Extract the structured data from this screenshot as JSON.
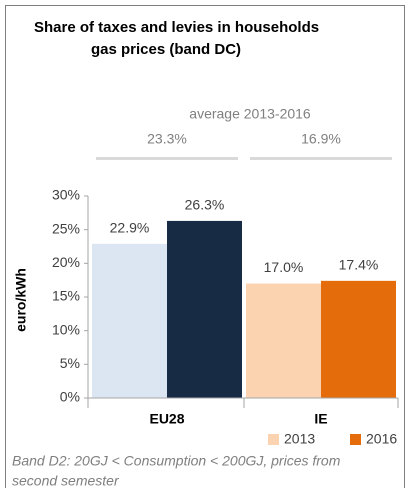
{
  "chart_data": {
    "type": "bar",
    "title": [
      "Share of taxes and levies in households",
      "gas prices (band DC)"
    ],
    "y_label": "euro/kWh",
    "categories": [
      "EU28",
      "IE"
    ],
    "series": [
      {
        "name": "2013",
        "color": "#fbd3b0",
        "point_colors": [
          "#dce6f2",
          "#fbd3b0"
        ],
        "values": [
          22.9,
          17.0
        ],
        "value_labels": [
          "22.9%",
          "17.0%"
        ]
      },
      {
        "name": "2016",
        "color": "#e46c0a",
        "point_colors": [
          "#172b45",
          "#e46c0a"
        ],
        "values": [
          26.3,
          17.4
        ],
        "value_labels": [
          "26.3%",
          "17.4%"
        ]
      }
    ],
    "averages": {
      "label": "average 2013-2016",
      "values": [
        23.3,
        16.9
      ],
      "value_labels": [
        "23.3%",
        "16.9%"
      ]
    },
    "ylim": [
      0,
      30
    ],
    "yticks": [
      {
        "value": 0,
        "label": "0%"
      },
      {
        "value": 5,
        "label": "5%"
      },
      {
        "value": 10,
        "label": "10%"
      },
      {
        "value": 15,
        "label": "15%"
      },
      {
        "value": 20,
        "label": "20%"
      },
      {
        "value": 25,
        "label": "25%"
      },
      {
        "value": 30,
        "label": "30%"
      }
    ],
    "grid": false,
    "legend": "bottom",
    "note": [
      "Band D2: 20GJ < Consumption < 200GJ, prices from",
      "second semester"
    ]
  }
}
